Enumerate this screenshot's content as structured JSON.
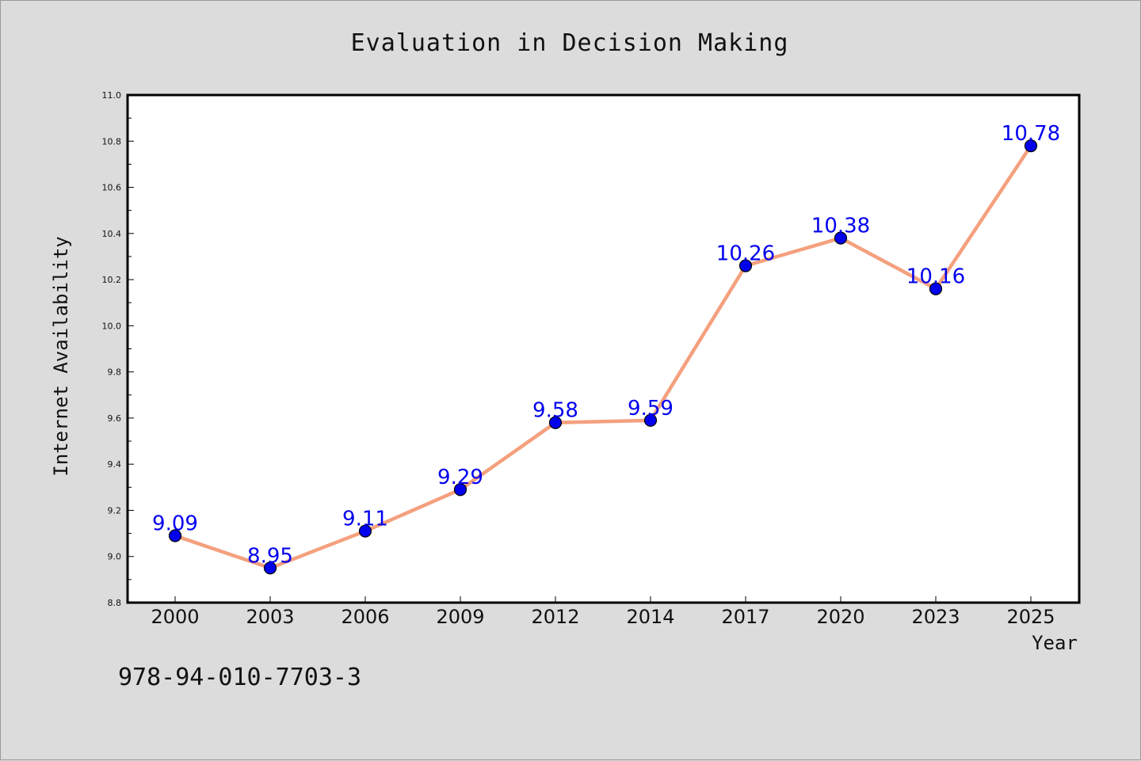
{
  "chart_data": {
    "type": "line",
    "title": "Evaluation in Decision Making",
    "xlabel": "Year",
    "ylabel": "Internet Availability",
    "categories": [
      "2000",
      "2003",
      "2006",
      "2009",
      "2012",
      "2014",
      "2017",
      "2020",
      "2023",
      "2025"
    ],
    "values": [
      9.09,
      8.95,
      9.11,
      9.29,
      9.58,
      9.59,
      10.26,
      10.38,
      10.16,
      10.78
    ],
    "data_labels": [
      "9.09",
      "8.95",
      "9.11",
      "9.29",
      "9.58",
      "9.59",
      "10.26",
      "10.38",
      "10.16",
      "10.78"
    ],
    "ylim": [
      8.8,
      11.0
    ],
    "yticks": [
      "8.8",
      "9.0",
      "9.2",
      "9.4",
      "9.6",
      "9.8",
      "10.0",
      "10.2",
      "10.4",
      "10.6",
      "10.8",
      "11.0"
    ],
    "grid": false,
    "line_color": "#f4a07e",
    "marker_color": "#0000ee"
  },
  "footer_text": "978-94-010-7703-3"
}
